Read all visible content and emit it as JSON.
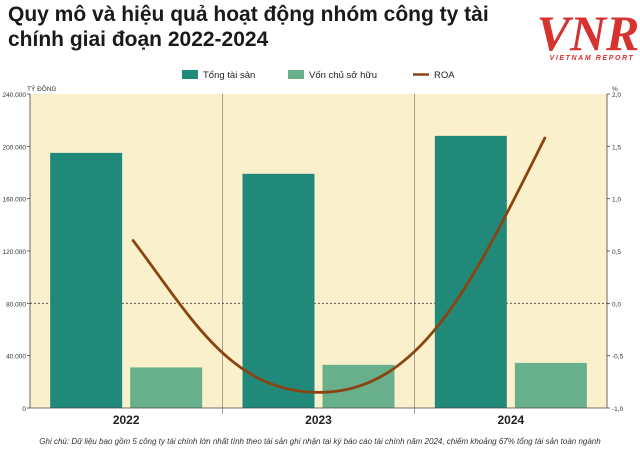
{
  "title": "Quy mô và hiệu quả hoạt động nhóm công ty tài chính giai đoạn 2022-2024",
  "logo": {
    "mark": "VNR",
    "subtitle": "VIETNAM REPORT"
  },
  "footnote": "Ghi chú: Dữ liệu bao gồm 5 công ty tài chính lớn nhất tính theo tài sản ghi nhận tại kỳ báo cáo tài chính năm 2024, chiếm khoảng 67% tổng tài sản toàn ngành",
  "colors": {
    "background": "#fbf0cc",
    "total_assets": "#20897a",
    "equity": "#67b08b",
    "roa": "#8a4412"
  },
  "chart_data": {
    "type": "bar",
    "categories": [
      "2022",
      "2023",
      "2024"
    ],
    "ylabel": "TỶ ĐỒNG",
    "ylim": [
      0,
      240000
    ],
    "yticks": [
      0,
      40000,
      80000,
      120000,
      160000,
      200000,
      240000
    ],
    "ytick_labels": [
      "0",
      "40.000",
      "80.000",
      "120.000",
      "160.000",
      "200.000",
      "240.000"
    ],
    "y2label": "%",
    "y2lim": [
      -1.0,
      2.0
    ],
    "y2ticks": [
      -1.0,
      -0.5,
      0.0,
      0.5,
      1.0,
      1.5,
      2.0
    ],
    "y2tick_labels": [
      "-1,0",
      "-0,5",
      "0,0",
      "0,5",
      "1,0",
      "1,5",
      "2,0"
    ],
    "legend_position": "top",
    "grid": "dashed reference at 80.000",
    "series": [
      {
        "name": "Tổng tài sản",
        "type": "bar",
        "axis": "left",
        "values": [
          195000,
          179000,
          208000
        ]
      },
      {
        "name": "Vốn chủ sở hữu",
        "type": "bar",
        "axis": "left",
        "values": [
          31000,
          33000,
          34500
        ]
      },
      {
        "name": "ROA",
        "type": "line",
        "axis": "right",
        "values": [
          0.6,
          -0.85,
          1.58
        ]
      }
    ]
  }
}
